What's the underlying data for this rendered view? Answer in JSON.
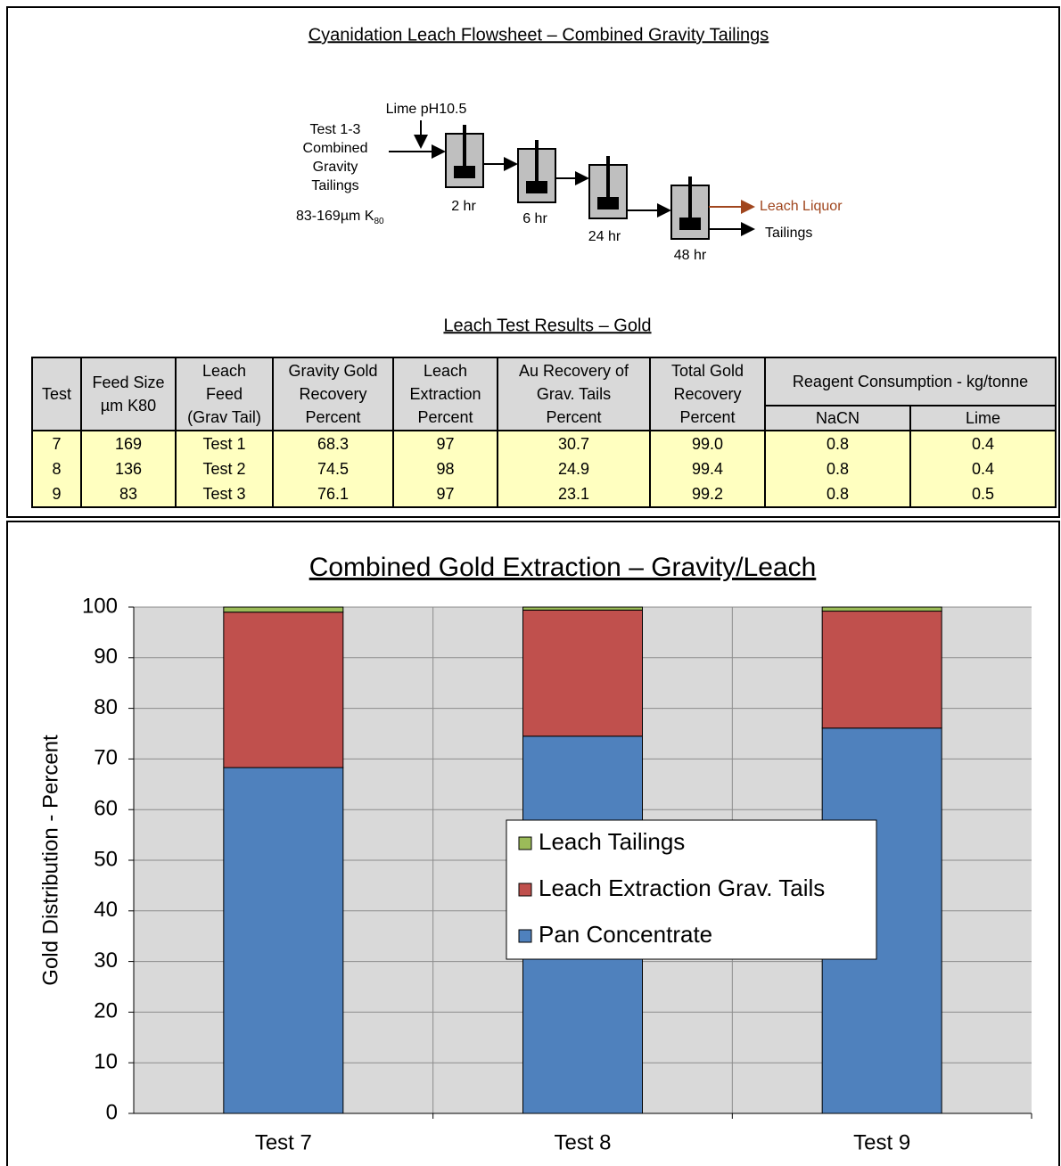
{
  "flowsheet": {
    "title": "Cyanidation Leach Flowsheet – Combined Gravity Tailings",
    "reagent": "Lime pH10.5",
    "feed_lines": [
      "Test 1-3",
      "Combined",
      "Gravity",
      "Tailings"
    ],
    "feed_size": "83-169µm K",
    "feed_size_subscript": "80",
    "tanks": [
      "2 hr",
      "6 hr",
      "24 hr",
      "48 hr"
    ],
    "outputs": [
      "Leach Liquor",
      "Tailings"
    ]
  },
  "table": {
    "title": "Leach Test Results – Gold",
    "headers": [
      [
        "Test"
      ],
      [
        "Feed Size",
        "µm K80"
      ],
      [
        "Leach",
        "Feed",
        "(Grav Tail)"
      ],
      [
        "Gravity Gold",
        "Recovery",
        "Percent"
      ],
      [
        "Leach",
        "Extraction",
        "Percent"
      ],
      [
        "Au Recovery of",
        "Grav. Tails",
        "Percent"
      ],
      [
        "Total  Gold",
        "Recovery",
        "Percent"
      ]
    ],
    "group_header": "Reagent Consumption - kg/tonne",
    "sub_headers": [
      "NaCN",
      "Lime"
    ],
    "rows": [
      [
        "7",
        "169",
        "Test 1",
        "68.3",
        "97",
        "30.7",
        "99.0",
        "0.8",
        "0.4"
      ],
      [
        "8",
        "136",
        "Test 2",
        "74.5",
        "98",
        "24.9",
        "99.4",
        "0.8",
        "0.4"
      ],
      [
        "9",
        "83",
        "Test 3",
        "76.1",
        "97",
        "23.1",
        "99.2",
        "0.8",
        "0.5"
      ]
    ]
  },
  "chart_data": {
    "type": "stacked_bar",
    "title": "Combined Gold Extraction – Gravity/Leach",
    "y_label": "Gold Distribution - Percent",
    "categories": [
      "Test 7",
      "Test 8",
      "Test 9"
    ],
    "series": [
      {
        "name": "Pan Concentrate",
        "color": "#4f81bd",
        "values": [
          68.3,
          74.5,
          76.1
        ]
      },
      {
        "name": "Leach Extraction Grav. Tails",
        "color": "#c0504d",
        "values": [
          30.7,
          24.9,
          23.1
        ]
      },
      {
        "name": "Leach Tailings",
        "color": "#9bbb59",
        "values": [
          1.0,
          0.6,
          0.8
        ]
      }
    ],
    "ylim": [
      0,
      100
    ],
    "yticks": [
      0,
      10,
      20,
      30,
      40,
      50,
      60,
      70,
      80,
      90,
      100
    ],
    "grid": true,
    "legend": "center"
  }
}
